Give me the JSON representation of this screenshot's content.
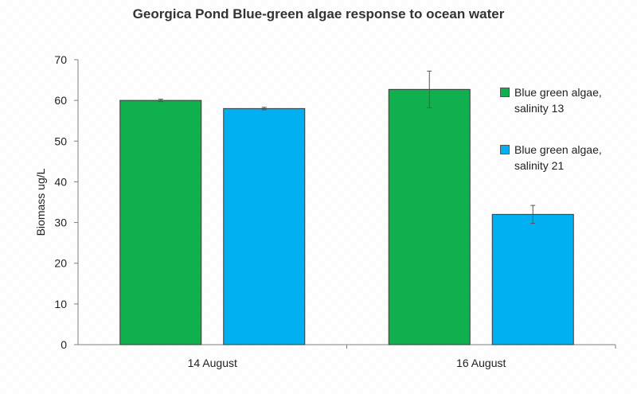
{
  "chart_data": {
    "type": "bar",
    "title": "Georgica Pond Blue-green algae response to ocean water",
    "xlabel": "",
    "ylabel": "Biomass ug/L",
    "ylim": [
      0,
      70
    ],
    "yticks": [
      0,
      10,
      20,
      30,
      40,
      50,
      60,
      70
    ],
    "categories": [
      "14 August",
      "16 August"
    ],
    "series": [
      {
        "name": "Blue green algae, salinity 13",
        "color": "#11b04f",
        "values": [
          60,
          62.7
        ],
        "errors": [
          0.3,
          4.5
        ]
      },
      {
        "name": "Blue green algae, salinity 21",
        "color": "#00b0f0",
        "values": [
          58,
          32
        ],
        "errors": [
          0.3,
          2.2
        ]
      }
    ],
    "legend_position": "right",
    "grid": false
  }
}
